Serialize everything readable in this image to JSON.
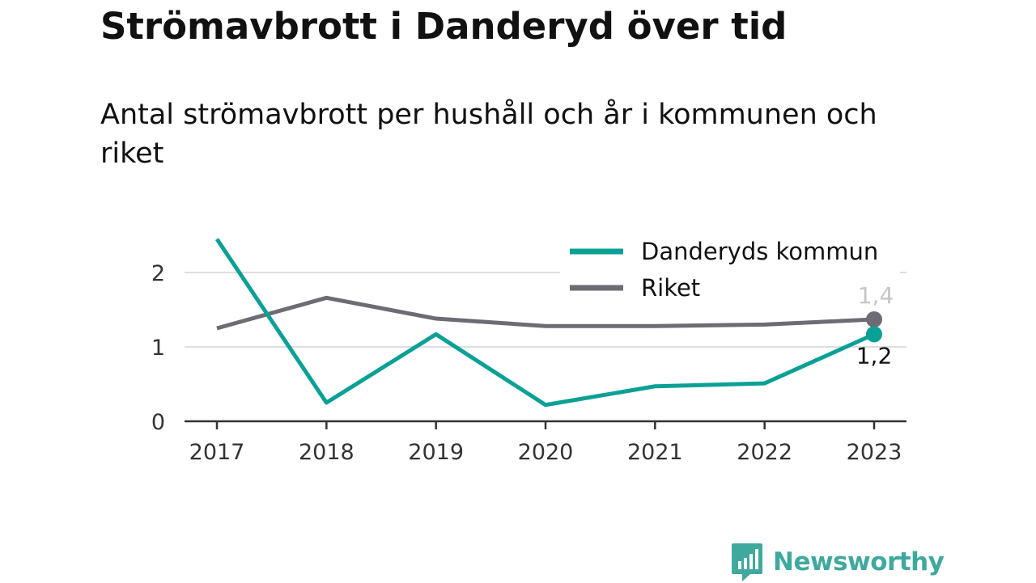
{
  "title": "Strömavbrott i Danderyd över tid",
  "subtitle": "Antal strömavbrott per hushåll och år i kommunen och riket",
  "brand": {
    "name": "Newsworthy",
    "logo_icon": "bar-chart-speech-bubble-icon",
    "color": "#3fa99d"
  },
  "chart_data": {
    "type": "line",
    "x": [
      "2017",
      "2018",
      "2019",
      "2020",
      "2021",
      "2022",
      "2023"
    ],
    "series": [
      {
        "name": "Danderyds kommun",
        "color": "#0ba095",
        "values": [
          2.45,
          0.25,
          1.17,
          0.22,
          0.47,
          0.51,
          1.17
        ],
        "end_label": "1,2"
      },
      {
        "name": "Riket",
        "color": "#6d6c75",
        "values": [
          1.25,
          1.66,
          1.38,
          1.28,
          1.28,
          1.3,
          1.37
        ],
        "end_label": "1,4"
      }
    ],
    "y_ticks": [
      {
        "value": 0,
        "label": "0"
      },
      {
        "value": 1,
        "label": "1"
      },
      {
        "value": 2,
        "label": "2"
      }
    ],
    "ylim": [
      0,
      2.5
    ],
    "grid": true,
    "legend_position": "top-right"
  }
}
